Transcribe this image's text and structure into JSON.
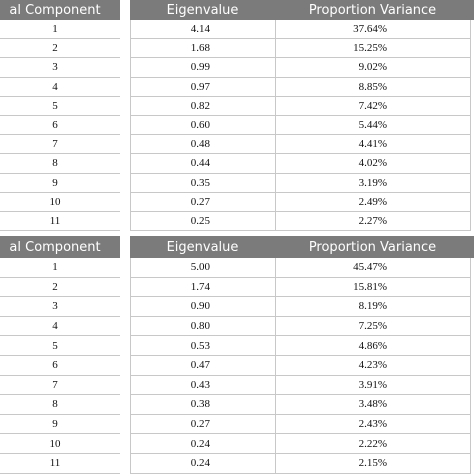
{
  "tables": [
    {
      "header": [
        "al Component",
        "Eigenvalue",
        "Proportion Variance"
      ],
      "rows": [
        [
          "1",
          "4.14",
          "37.64%"
        ],
        [
          "2",
          "1.68",
          "15.25%"
        ],
        [
          "3",
          "0.99",
          "9.02%"
        ],
        [
          "4",
          "0.97",
          "8.85%"
        ],
        [
          "5",
          "0.82",
          "7.42%"
        ],
        [
          "6",
          "0.60",
          "5.44%"
        ],
        [
          "7",
          "0.48",
          "4.41%"
        ],
        [
          "8",
          "0.44",
          "4.02%"
        ],
        [
          "9",
          "0.35",
          "3.19%"
        ],
        [
          "10",
          "0.27",
          "2.49%"
        ],
        [
          "11",
          "0.25",
          "2.27%"
        ]
      ]
    },
    {
      "header": [
        "al Component",
        "Eigenvalue",
        "Proportion Variance"
      ],
      "rows": [
        [
          "1",
          "5.00",
          "45.47%"
        ],
        [
          "2",
          "1.74",
          "15.81%"
        ],
        [
          "3",
          "0.90",
          "8.19%"
        ],
        [
          "4",
          "0.80",
          "7.25%"
        ],
        [
          "5",
          "0.53",
          "4.86%"
        ],
        [
          "6",
          "0.47",
          "4.23%"
        ],
        [
          "7",
          "0.43",
          "3.91%"
        ],
        [
          "8",
          "0.38",
          "3.48%"
        ],
        [
          "9",
          "0.27",
          "2.43%"
        ],
        [
          "10",
          "0.24",
          "2.22%"
        ],
        [
          "11",
          "0.24",
          "2.15%"
        ]
      ]
    }
  ]
}
